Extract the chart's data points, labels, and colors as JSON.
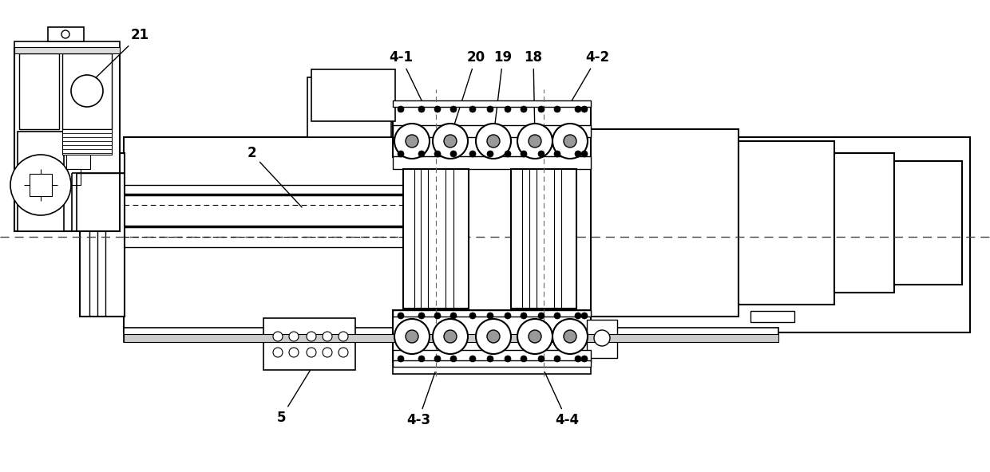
{
  "bg_color": "#ffffff",
  "line_color": "#000000",
  "fig_width": 12.4,
  "fig_height": 5.92,
  "dashed_color": "#555555"
}
